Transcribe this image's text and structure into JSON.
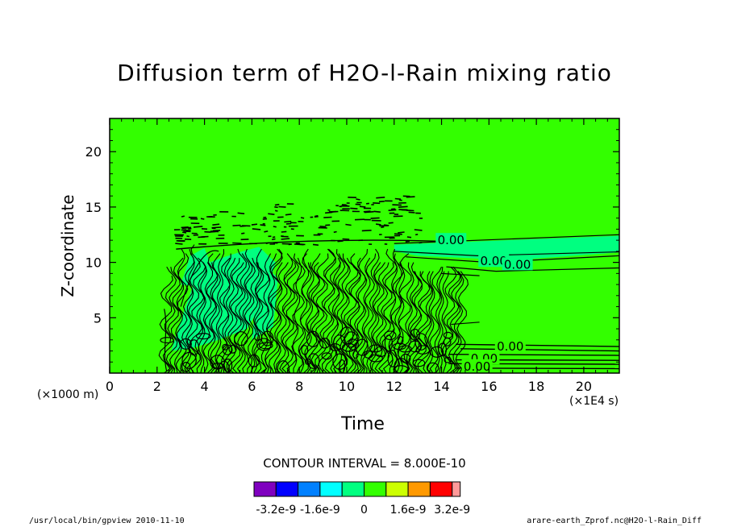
{
  "chart_data": {
    "type": "contour",
    "title": "Diffusion term of H2O-l-Rain mixing ratio",
    "xlabel": "Time",
    "ylabel": "Z-coordinate",
    "x_unit": "(×1E4 s)",
    "y_unit": "(×1000 m)",
    "xlim": [
      0,
      21.5
    ],
    "ylim": [
      0,
      23
    ],
    "x_ticks": [
      "0",
      "2",
      "4",
      "6",
      "8",
      "10",
      "12",
      "14",
      "16",
      "18",
      "20"
    ],
    "y_ticks": [
      "5",
      "10",
      "15",
      "20"
    ],
    "contour_interval": "CONTOUR INTERVAL = 8.000E-10",
    "contour_labels": [
      {
        "text": "0.00",
        "x": 14.4,
        "y": 12.0
      },
      {
        "text": "0.00",
        "x": 16.2,
        "y": 10.1
      },
      {
        "text": "0.00",
        "x": 17.2,
        "y": 9.8
      },
      {
        "text": "0.00",
        "x": 16.9,
        "y": 2.4
      },
      {
        "text": "0.00",
        "x": 15.8,
        "y": 1.3
      },
      {
        "text": "0.00",
        "x": 15.5,
        "y": 0.6
      }
    ],
    "colorbar": {
      "colors": [
        "#7f00bf",
        "#0000ff",
        "#0080ff",
        "#00ffff",
        "#00ff80",
        "#33ff00",
        "#ccff00",
        "#ff9900",
        "#ff0000",
        "#ff9999"
      ],
      "tick_labels": [
        "-3.2e-9",
        "-1.6e-9",
        "0",
        "1.6e-9",
        "3.2e-9"
      ],
      "tick_values": [
        -3.2e-09,
        -1.6e-09,
        0,
        1.6e-09,
        3.2e-09
      ]
    },
    "background_color": "#33ff00",
    "band_color": "#00ff80"
  },
  "footer": {
    "left": "/usr/local/bin/gpview  2010-11-10",
    "right": "arare-earth_Zprof.nc@H2O-l-Rain_Diff"
  }
}
